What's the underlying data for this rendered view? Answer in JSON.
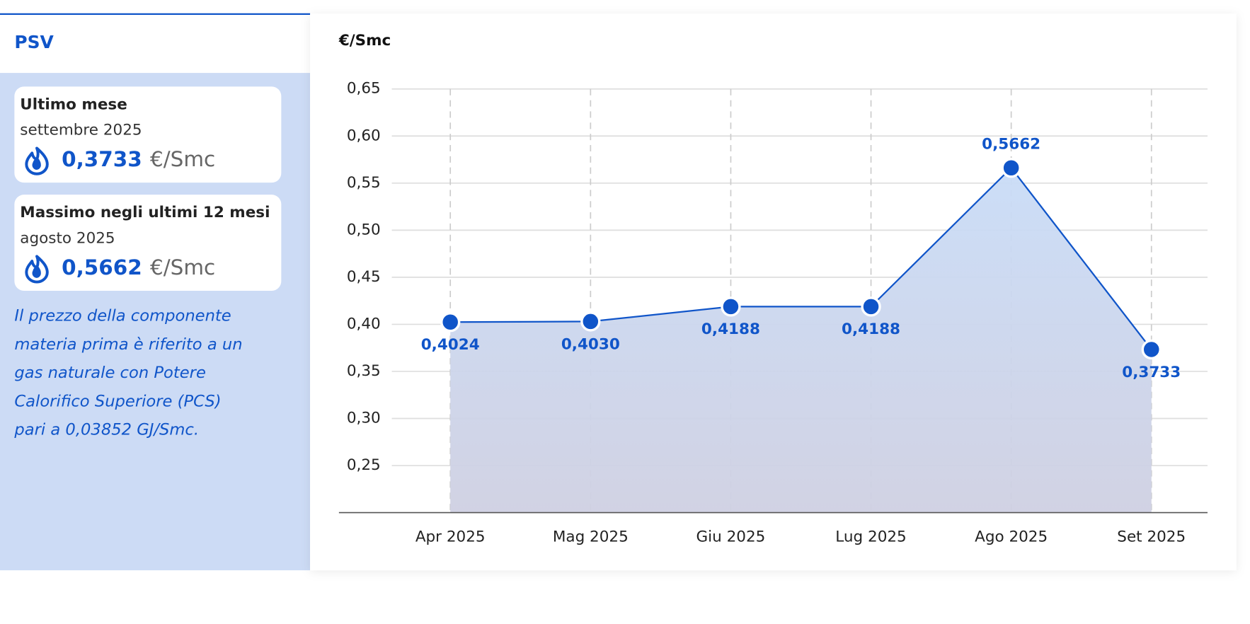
{
  "panel": {
    "title": "PSV",
    "cards": [
      {
        "heading": "Ultimo mese",
        "period": "settembre 2025",
        "value": "0,3733",
        "unit": "€/Smc"
      },
      {
        "heading": "Massimo negli ultimi 12 mesi",
        "period": "agosto 2025",
        "value": "0,5662",
        "unit": "€/Smc"
      }
    ],
    "note_lines": [
      "Il prezzo della componente",
      "materia prima è riferito a un",
      "gas naturale con Potere",
      "Calorifico Superiore (PCS)",
      "pari a 0,03852 GJ/Smc."
    ]
  },
  "chart_data": {
    "type": "area",
    "y_label": "€/Smc",
    "categories": [
      "Apr 2025",
      "Mag 2025",
      "Giu 2025",
      "Lug 2025",
      "Ago 2025",
      "Set 2025"
    ],
    "values": [
      0.4024,
      0.403,
      0.4188,
      0.4188,
      0.5662,
      0.3733
    ],
    "value_labels": [
      "0,4024",
      "0,4030",
      "0,4188",
      "0,4188",
      "0,5662",
      "0,3733"
    ],
    "color": "#1055c9",
    "ylim": [
      0.2,
      0.65
    ],
    "yticks": [
      {
        "value": 0.25,
        "label": "0,25"
      },
      {
        "value": 0.3,
        "label": "0,30"
      },
      {
        "value": 0.35,
        "label": "0,35"
      },
      {
        "value": 0.4,
        "label": "0,40"
      },
      {
        "value": 0.45,
        "label": "0,45"
      },
      {
        "value": 0.5,
        "label": "0,50"
      },
      {
        "value": 0.55,
        "label": "0,55"
      },
      {
        "value": 0.6,
        "label": "0,60"
      },
      {
        "value": 0.65,
        "label": "0,65"
      }
    ],
    "grid": true
  }
}
